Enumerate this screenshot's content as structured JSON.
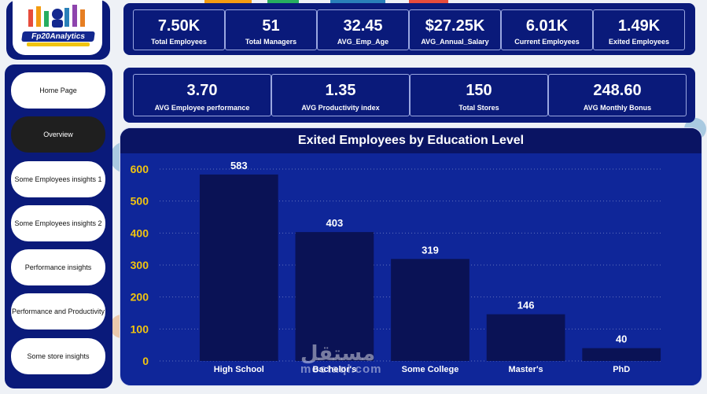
{
  "brand": {
    "logo_text": "Fp20Analytics"
  },
  "sidebar": {
    "items": [
      {
        "label": "Home Page",
        "active": false
      },
      {
        "label": "Overview",
        "active": true
      },
      {
        "label": "Some Employees insights 1",
        "active": false
      },
      {
        "label": "Some Employees insights 2",
        "active": false
      },
      {
        "label": "Performance insights",
        "active": false
      },
      {
        "label": "Performance and Productivity",
        "active": false
      },
      {
        "label": "Some store insights",
        "active": false
      }
    ]
  },
  "kpis_top": [
    {
      "value": "7.50K",
      "label": "Total Employees"
    },
    {
      "value": "51",
      "label": "Total Managers"
    },
    {
      "value": "32.45",
      "label": "AVG_Emp_Age"
    },
    {
      "value": "$27.25K",
      "label": "AVG_Annual_Salary"
    },
    {
      "value": "6.01K",
      "label": "Current Employees"
    },
    {
      "value": "1.49K",
      "label": "Exited Employees"
    }
  ],
  "kpis_bottom": [
    {
      "value": "3.70",
      "label": "AVG Employee performance"
    },
    {
      "value": "1.35",
      "label": "AVG Productivity index"
    },
    {
      "value": "150",
      "label": "Total Stores"
    },
    {
      "value": "248.60",
      "label": "AVG Monthly Bonus"
    }
  ],
  "watermark": {
    "arabic": "مستقل",
    "latin": "mostaql.com"
  },
  "colors": {
    "panel": "#0a1a7a",
    "chart_bg": "#0f2699",
    "bar": "#0a1255",
    "axis_text": "#f1c40f",
    "label_text": "#ffffff"
  },
  "chart_data": {
    "type": "bar",
    "title": "Exited Employees by Education Level",
    "categories": [
      "High School",
      "Bachelor's",
      "Some College",
      "Master's",
      "PhD"
    ],
    "values": [
      583,
      403,
      319,
      146,
      40
    ],
    "value_labels": [
      "583",
      "403",
      "319",
      "146",
      "40"
    ],
    "ylim": [
      0,
      600
    ],
    "yticks": [
      0,
      100,
      200,
      300,
      400,
      500,
      600
    ],
    "grid": true,
    "legend": "none"
  }
}
